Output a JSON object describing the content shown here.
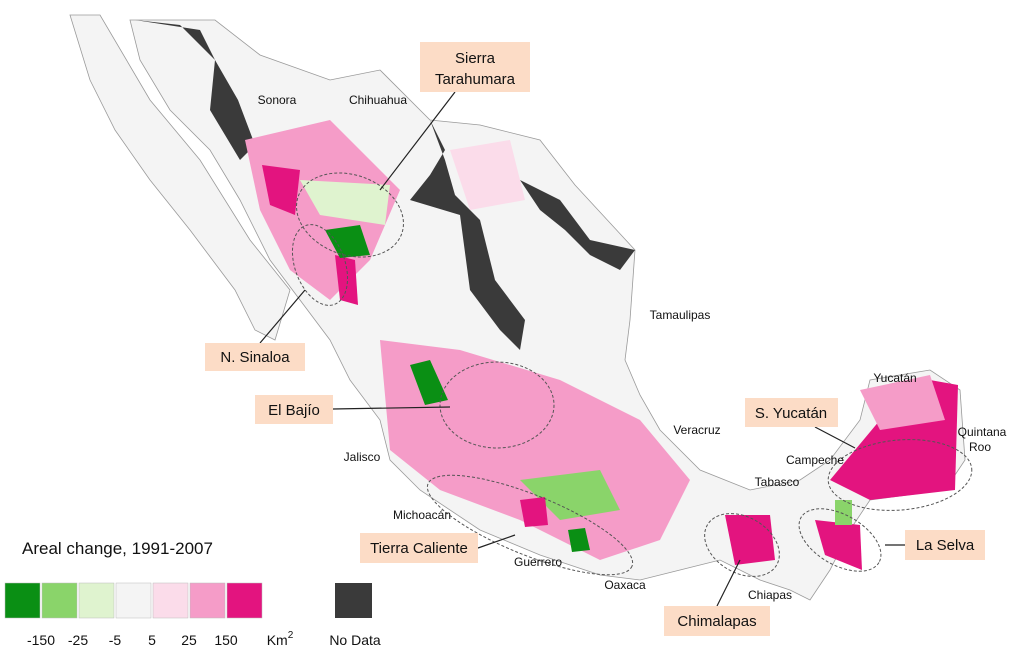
{
  "states": [
    "Sonora",
    "Chihuahua",
    "Tamaulipas",
    "Veracruz",
    "Jalisco",
    "Michoacán",
    "Guerrero",
    "Oaxaca",
    "Chiapas",
    "Tabasco",
    "Campeche",
    "Yucatán",
    [
      "Quintana",
      "Roo"
    ]
  ],
  "regions": [
    [
      "Sierra",
      "Tarahumara"
    ],
    [
      "N. Sinaloa"
    ],
    [
      "El Bajío"
    ],
    [
      "S. Yucatán"
    ],
    [
      "Tierra Caliente"
    ],
    [
      "La Selva"
    ],
    [
      "Chimalapas"
    ]
  ],
  "legend": {
    "title": "Areal change, 1991-2007",
    "breaks": [
      -150,
      -25,
      -5,
      5,
      25,
      150
    ],
    "colors": [
      "#0a8f14",
      "#8ad46a",
      "#dff3cf",
      "#f4f4f4",
      "#fbdcea",
      "#f59cc8",
      "#e3147f"
    ],
    "unit_base": "Km",
    "unit_exponent": "2",
    "no_data_label": "No Data",
    "no_data_color": "#3a3a3a"
  }
}
